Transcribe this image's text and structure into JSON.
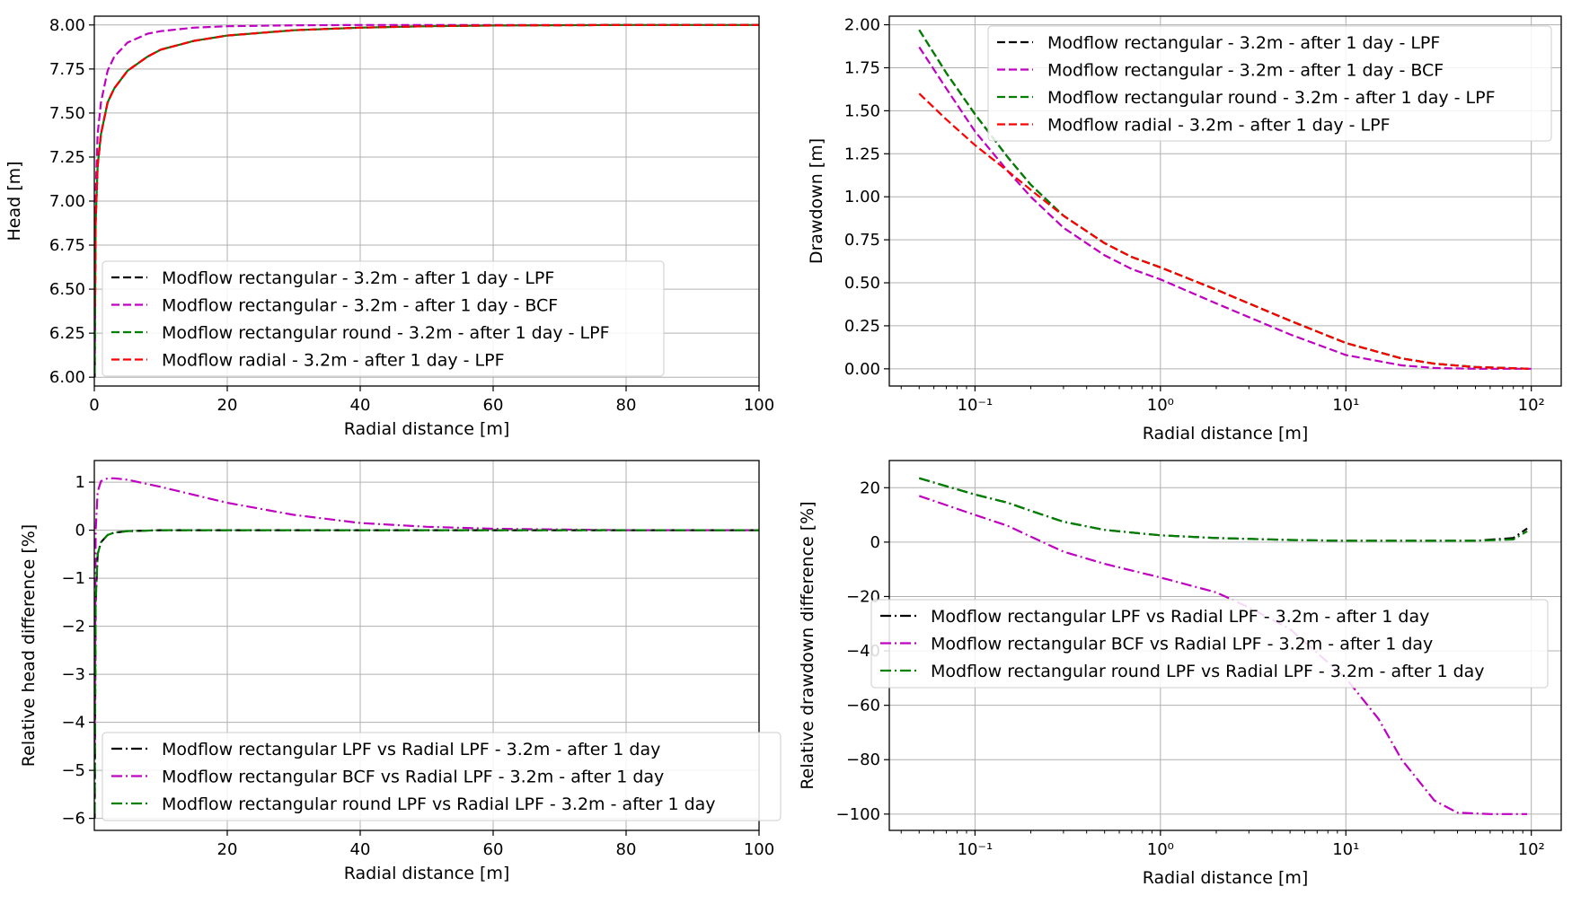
{
  "chart_data": [
    {
      "type": "line",
      "panel": "top-left",
      "xlabel": "Radial distance [m]",
      "ylabel": "Head [m]",
      "xscale": "linear",
      "xlim": [
        0,
        100
      ],
      "ylim": [
        5.95,
        8.05
      ],
      "xticks": [
        0,
        20,
        40,
        60,
        80,
        100
      ],
      "xtick_labels": [
        "0",
        "20",
        "40",
        "60",
        "80",
        "100"
      ],
      "yticks": [
        6.0,
        6.25,
        6.5,
        6.75,
        7.0,
        7.25,
        7.5,
        7.75,
        8.0
      ],
      "ytick_labels": [
        "6.00",
        "6.25",
        "6.50",
        "6.75",
        "7.00",
        "7.25",
        "7.50",
        "7.75",
        "8.00"
      ],
      "grid": true,
      "legend_position": "lower-left",
      "series": [
        {
          "name": "Modflow rectangular - 3.2m - after 1 day - LPF",
          "color": "#000000",
          "dash": "dashed",
          "x": [
            0.05,
            0.2,
            0.5,
            1,
            2,
            3,
            5,
            8,
            10,
            15,
            20,
            30,
            40,
            50,
            60,
            80,
            100
          ],
          "y": [
            6.0,
            6.88,
            7.2,
            7.38,
            7.56,
            7.64,
            7.74,
            7.82,
            7.86,
            7.91,
            7.94,
            7.97,
            7.985,
            7.993,
            7.997,
            8.0,
            8.0
          ]
        },
        {
          "name": "Modflow rectangular - 3.2m - after 1 day - BCF",
          "color": "#c000c0",
          "dash": "dashed",
          "x": [
            0.05,
            0.2,
            0.5,
            1,
            2,
            3,
            5,
            8,
            10,
            15,
            20,
            30,
            40,
            50,
            60,
            80,
            100
          ],
          "y": [
            6.13,
            7.05,
            7.38,
            7.56,
            7.74,
            7.82,
            7.9,
            7.95,
            7.965,
            7.985,
            7.993,
            7.998,
            8.0,
            8.0,
            8.0,
            8.0,
            8.0
          ]
        },
        {
          "name": "Modflow rectangular round - 3.2m - after 1 day - LPF",
          "color": "#008000",
          "dash": "dashed",
          "x": [
            0.05,
            0.2,
            0.5,
            1,
            2,
            3,
            5,
            8,
            10,
            15,
            20,
            30,
            40,
            50,
            60,
            80,
            100
          ],
          "y": [
            6.02,
            6.88,
            7.2,
            7.38,
            7.56,
            7.64,
            7.74,
            7.82,
            7.86,
            7.91,
            7.94,
            7.97,
            7.985,
            7.993,
            7.997,
            8.0,
            8.0
          ]
        },
        {
          "name": "Modflow radial - 3.2m - after 1 day - LPF",
          "color": "#ff0000",
          "dash": "dashed",
          "x": [
            0.05,
            0.2,
            0.5,
            1,
            2,
            3,
            5,
            8,
            10,
            15,
            20,
            30,
            40,
            50,
            60,
            80,
            100
          ],
          "y": [
            6.4,
            6.9,
            7.2,
            7.38,
            7.56,
            7.64,
            7.74,
            7.82,
            7.86,
            7.91,
            7.94,
            7.97,
            7.985,
            7.993,
            7.997,
            8.0,
            8.0
          ]
        }
      ]
    },
    {
      "type": "line",
      "panel": "top-right",
      "xlabel": "Radial distance [m]",
      "ylabel": "Drawdown [m]",
      "xscale": "log",
      "xlim": [
        0.0345,
        145
      ],
      "ylim": [
        -0.1,
        2.05
      ],
      "xticks": [
        0.1,
        1,
        10,
        100
      ],
      "xtick_labels": [
        "10⁻¹",
        "10⁰",
        "10¹",
        "10²"
      ],
      "yticks": [
        0,
        0.25,
        0.5,
        0.75,
        1.0,
        1.25,
        1.5,
        1.75,
        2.0
      ],
      "ytick_labels": [
        "0.00",
        "0.25",
        "0.50",
        "0.75",
        "1.00",
        "1.25",
        "1.50",
        "1.75",
        "2.00"
      ],
      "grid": true,
      "legend_position": "upper-right",
      "series": [
        {
          "name": "Modflow rectangular - 3.2m - after 1 day - LPF",
          "color": "#000000",
          "dash": "dashed",
          "x": [
            0.05,
            0.07,
            0.1,
            0.15,
            0.2,
            0.3,
            0.5,
            0.7,
            1,
            2,
            3,
            5,
            10,
            20,
            30,
            50,
            100
          ],
          "y": [
            1.97,
            1.72,
            1.48,
            1.23,
            1.07,
            0.89,
            0.73,
            0.65,
            0.59,
            0.46,
            0.38,
            0.28,
            0.15,
            0.06,
            0.03,
            0.01,
            0.0
          ]
        },
        {
          "name": "Modflow rectangular - 3.2m - after 1 day - BCF",
          "color": "#c000c0",
          "dash": "dashed",
          "x": [
            0.05,
            0.07,
            0.1,
            0.15,
            0.2,
            0.3,
            0.5,
            0.7,
            1,
            2,
            3,
            5,
            10,
            20,
            30,
            50,
            100
          ],
          "y": [
            1.87,
            1.63,
            1.38,
            1.15,
            1.0,
            0.82,
            0.66,
            0.58,
            0.52,
            0.38,
            0.3,
            0.2,
            0.08,
            0.02,
            0.005,
            0.0,
            0.0
          ]
        },
        {
          "name": "Modflow rectangular round - 3.2m - after 1 day - LPF",
          "color": "#008000",
          "dash": "dashed",
          "x": [
            0.05,
            0.07,
            0.1,
            0.15,
            0.2,
            0.3,
            0.5,
            0.7,
            1,
            2,
            3,
            5,
            10,
            20,
            30,
            50,
            100
          ],
          "y": [
            1.97,
            1.72,
            1.48,
            1.23,
            1.07,
            0.89,
            0.73,
            0.65,
            0.59,
            0.46,
            0.38,
            0.28,
            0.15,
            0.06,
            0.03,
            0.01,
            0.0
          ]
        },
        {
          "name": "Modflow radial - 3.2m - after 1 day - LPF",
          "color": "#ff0000",
          "dash": "dashed",
          "x": [
            0.05,
            0.07,
            0.1,
            0.15,
            0.2,
            0.3,
            0.5,
            0.7,
            1,
            2,
            3,
            5,
            10,
            20,
            30,
            50,
            100
          ],
          "y": [
            1.6,
            1.45,
            1.3,
            1.15,
            1.04,
            0.89,
            0.73,
            0.65,
            0.59,
            0.46,
            0.38,
            0.28,
            0.15,
            0.06,
            0.03,
            0.01,
            0.0
          ]
        }
      ]
    },
    {
      "type": "line",
      "panel": "bottom-left",
      "xlabel": "Radial distance [m]",
      "ylabel": "Relative head difference [%]",
      "xscale": "linear",
      "xlim": [
        0,
        100
      ],
      "ylim": [
        -6.25,
        1.45
      ],
      "xticks": [
        20,
        40,
        60,
        80,
        100
      ],
      "xtick_labels": [
        "20",
        "40",
        "60",
        "80",
        "100"
      ],
      "yticks": [
        -6,
        -5,
        -4,
        -3,
        -2,
        -1,
        0,
        1
      ],
      "ytick_labels": [
        "−6",
        "−5",
        "−4",
        "−3",
        "−2",
        "−1",
        "0",
        "1"
      ],
      "grid": true,
      "legend_position": "lower-left",
      "series": [
        {
          "name": "Modflow rectangular LPF vs Radial LPF - 3.2m - after 1 day",
          "color": "#000000",
          "dash": "dashdot",
          "x": [
            0.05,
            0.2,
            0.5,
            1,
            2,
            3,
            5,
            10,
            20,
            40,
            60,
            80,
            100
          ],
          "y": [
            -6.0,
            -1.5,
            -0.5,
            -0.25,
            -0.1,
            -0.05,
            -0.02,
            0.0,
            0.0,
            0.0,
            0.0,
            0.0,
            0.0
          ]
        },
        {
          "name": "Modflow rectangular BCF vs Radial LPF - 3.2m - after 1 day",
          "color": "#c000c0",
          "dash": "dashdot",
          "x": [
            0.05,
            0.2,
            0.5,
            1,
            2,
            3,
            5,
            10,
            20,
            30,
            40,
            50,
            60,
            80,
            100
          ],
          "y": [
            -4.5,
            0.0,
            0.8,
            1.02,
            1.08,
            1.08,
            1.05,
            0.9,
            0.57,
            0.32,
            0.15,
            0.07,
            0.03,
            0.0,
            0.0
          ]
        },
        {
          "name": "Modflow rectangular round LPF vs Radial LPF - 3.2m - after 1 day",
          "color": "#008000",
          "dash": "dashdot",
          "x": [
            0.05,
            0.2,
            0.5,
            1,
            2,
            3,
            5,
            10,
            20,
            40,
            60,
            80,
            100
          ],
          "y": [
            -5.9,
            -1.5,
            -0.5,
            -0.25,
            -0.1,
            -0.05,
            -0.02,
            0.0,
            0.0,
            0.0,
            0.0,
            0.0,
            0.0
          ]
        }
      ]
    },
    {
      "type": "line",
      "panel": "bottom-right",
      "xlabel": "Radial distance [m]",
      "ylabel": "Relative drawdown difference [%]",
      "xscale": "log",
      "xlim": [
        0.0345,
        145
      ],
      "ylim": [
        -106,
        30
      ],
      "xticks": [
        0.1,
        1,
        10,
        100
      ],
      "xtick_labels": [
        "10⁻¹",
        "10⁰",
        "10¹",
        "10²"
      ],
      "yticks": [
        -100,
        -80,
        -60,
        -40,
        -20,
        0,
        20
      ],
      "ytick_labels": [
        "−100",
        "−80",
        "−60",
        "−40",
        "−20",
        "0",
        "20"
      ],
      "grid": true,
      "legend_position": "center-right",
      "series": [
        {
          "name": "Modflow rectangular LPF vs Radial LPF - 3.2m - after 1 day",
          "color": "#000000",
          "dash": "dashdot",
          "x": [
            0.05,
            0.1,
            0.15,
            0.2,
            0.3,
            0.5,
            1,
            2,
            5,
            10,
            20,
            50,
            80,
            95
          ],
          "y": [
            23.5,
            17.5,
            14.5,
            11.5,
            7.5,
            4.5,
            2.5,
            1.5,
            0.8,
            0.5,
            0.5,
            0.5,
            1.5,
            5.0
          ]
        },
        {
          "name": "Modflow rectangular BCF vs Radial LPF - 3.2m - after 1 day",
          "color": "#c000c0",
          "dash": "dashdot",
          "x": [
            0.05,
            0.1,
            0.15,
            0.2,
            0.3,
            0.5,
            1,
            2,
            3,
            5,
            10,
            15,
            20,
            30,
            40,
            60,
            95
          ],
          "y": [
            17.0,
            10.0,
            6.0,
            2.0,
            -3.5,
            -8.0,
            -13.0,
            -18.5,
            -24.0,
            -32.0,
            -50.0,
            -65.0,
            -80.0,
            -95.0,
            -99.5,
            -100.0,
            -100.0
          ]
        },
        {
          "name": "Modflow rectangular round LPF vs Radial LPF - 3.2m - after 1 day",
          "color": "#008000",
          "dash": "dashdot",
          "x": [
            0.05,
            0.1,
            0.15,
            0.2,
            0.3,
            0.5,
            1,
            2,
            5,
            10,
            20,
            50,
            80,
            95
          ],
          "y": [
            23.5,
            17.5,
            14.5,
            11.5,
            7.5,
            4.5,
            2.5,
            1.5,
            0.8,
            0.5,
            0.5,
            0.5,
            1.0,
            4.0
          ]
        }
      ]
    }
  ]
}
